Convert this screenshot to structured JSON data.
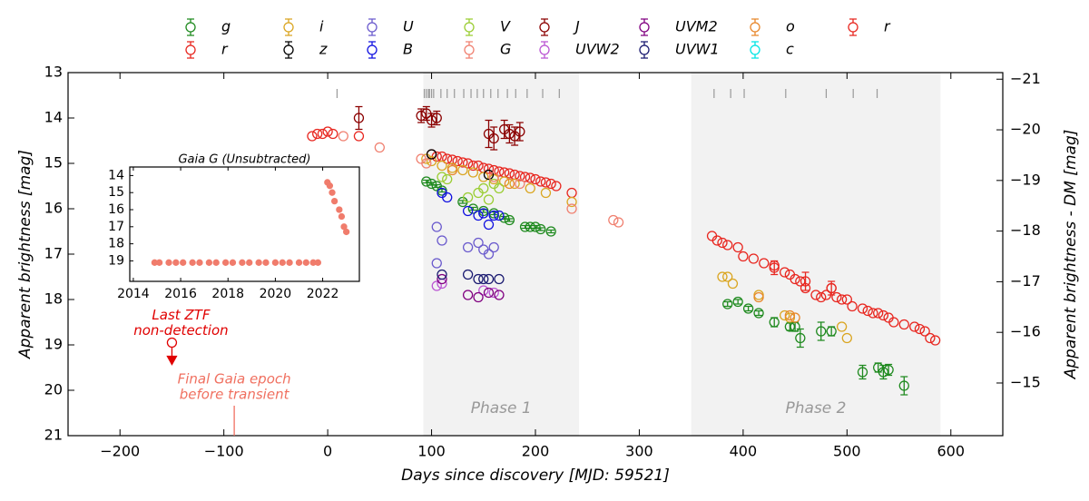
{
  "chart_data": [
    {
      "type": "scatter",
      "xlabel": "Days since discovery [MJD: 59521]",
      "ylabel": "Apparent brightness [mag]",
      "y2label": "Apparent brightness - DM [mag]",
      "xlim": [
        -250,
        650
      ],
      "ylim": [
        13,
        21
      ],
      "invert_y": true,
      "y2lim": [
        -21.13,
        -13.96
      ],
      "xticks": [
        {
          "value": -200,
          "label": "−200"
        },
        {
          "value": -100,
          "label": "−100"
        },
        0,
        100,
        200,
        300,
        400,
        500,
        600
      ],
      "yticks": [
        13,
        14,
        15,
        16,
        17,
        18,
        19,
        20,
        21
      ],
      "y2ticks": [
        {
          "value": -21,
          "label": "−21"
        },
        {
          "value": -20,
          "label": "−20"
        },
        {
          "value": -19,
          "label": "−19"
        },
        {
          "value": -18,
          "label": "−18"
        },
        {
          "value": -17,
          "label": "−17"
        },
        {
          "value": -16,
          "label": "−16"
        },
        {
          "value": -15,
          "label": "−15"
        }
      ],
      "legend": "top",
      "regions": [
        {
          "label": "Phase 1",
          "range": [
            92,
            242
          ],
          "color": "#f2f2f2"
        },
        {
          "label": "Phase 2",
          "range": [
            350,
            590
          ],
          "color": "#f2f2f2"
        }
      ],
      "epoch_ticks": [
        9,
        93,
        95,
        97,
        98,
        100,
        102,
        109,
        115,
        122,
        131,
        138,
        144,
        150,
        157,
        164,
        173,
        181,
        192,
        207,
        223,
        372,
        388,
        401,
        441,
        480,
        506,
        529
      ],
      "epoch_color": "#999999",
      "series": [
        {
          "name": "g",
          "color": "#1f8a1f",
          "x": [
            95,
            100,
            105,
            110,
            130,
            140,
            150,
            160,
            170,
            175,
            190,
            195,
            200,
            205,
            215,
            385,
            395,
            405,
            415,
            430,
            445,
            450,
            455,
            475,
            485,
            515,
            530,
            535,
            540,
            555
          ],
          "y": [
            15.4,
            15.45,
            15.5,
            15.6,
            15.85,
            16.0,
            16.05,
            16.1,
            16.2,
            16.25,
            16.4,
            16.4,
            16.4,
            16.45,
            16.5,
            18.1,
            18.05,
            18.2,
            18.3,
            18.5,
            18.6,
            18.6,
            18.85,
            18.7,
            18.7,
            19.6,
            19.5,
            19.6,
            19.55,
            19.9
          ],
          "err": [
            0.03,
            0.03,
            0.03,
            0.03,
            0.03,
            0.03,
            0.03,
            0.03,
            0.03,
            0.03,
            0.03,
            0.03,
            0.03,
            0.03,
            0.03,
            0.05,
            0.05,
            0.05,
            0.05,
            0.1,
            0.08,
            0.1,
            0.2,
            0.2,
            0.1,
            0.15,
            0.1,
            0.15,
            0.12,
            0.2
          ]
        },
        {
          "name": "r",
          "color": "#e8261f",
          "x": [
            -15,
            -10,
            -5,
            0,
            5,
            30,
            100,
            105,
            110,
            115,
            120,
            125,
            130,
            135,
            140,
            145,
            150,
            155,
            160,
            165,
            170,
            175,
            180,
            185,
            190,
            195,
            200,
            205,
            210,
            215,
            220,
            235,
            370,
            375,
            380,
            385,
            395,
            400,
            410,
            420,
            430,
            440,
            445,
            450,
            455,
            460,
            470,
            475,
            480,
            485,
            490,
            495,
            500,
            505,
            515,
            520,
            525,
            530,
            535,
            540,
            545,
            555,
            565,
            570,
            575,
            580,
            585
          ],
          "y": [
            14.4,
            14.35,
            14.35,
            14.3,
            14.35,
            14.4,
            14.8,
            14.85,
            14.85,
            14.9,
            14.92,
            14.95,
            14.98,
            15.0,
            15.05,
            15.05,
            15.1,
            15.12,
            15.15,
            15.18,
            15.2,
            15.22,
            15.25,
            15.28,
            15.3,
            15.32,
            15.35,
            15.4,
            15.42,
            15.45,
            15.5,
            15.65,
            16.6,
            16.7,
            16.75,
            16.8,
            16.85,
            17.05,
            17.1,
            17.2,
            17.25,
            17.4,
            17.45,
            17.55,
            17.6,
            17.75,
            17.9,
            17.95,
            17.9,
            17.75,
            17.95,
            18.0,
            18.0,
            18.15,
            18.2,
            18.25,
            18.3,
            18.3,
            18.35,
            18.4,
            18.5,
            18.55,
            18.6,
            18.65,
            18.7,
            18.85,
            18.9
          ]
        },
        {
          "name": "i",
          "color": "#daa520",
          "x": [
            95,
            100,
            110,
            120,
            130,
            140,
            150,
            160,
            170,
            180,
            195,
            210,
            235,
            380,
            385,
            390,
            415,
            440,
            445,
            495,
            500
          ],
          "y": [
            14.9,
            14.95,
            15.05,
            15.1,
            15.15,
            15.2,
            15.3,
            15.35,
            15.4,
            15.45,
            15.55,
            15.65,
            15.85,
            17.5,
            17.5,
            17.65,
            17.9,
            18.35,
            18.4,
            18.6,
            18.85
          ]
        },
        {
          "name": "z",
          "color": "#000000",
          "x": [
            100,
            155
          ],
          "y": [
            14.8,
            15.25
          ]
        },
        {
          "name": "U",
          "color": "#6a5acd",
          "x": [
            105,
            105,
            110,
            135,
            145,
            150,
            155,
            160
          ],
          "y": [
            16.4,
            17.2,
            16.7,
            16.85,
            16.75,
            16.9,
            17.0,
            16.85
          ]
        },
        {
          "name": "B",
          "color": "#1010e0",
          "x": [
            110,
            115,
            135,
            145,
            150,
            155,
            160,
            165
          ],
          "y": [
            15.65,
            15.75,
            16.05,
            16.15,
            16.1,
            16.35,
            16.15,
            16.15
          ]
        },
        {
          "name": "V",
          "color": "#9acd32",
          "x": [
            110,
            115,
            135,
            145,
            150,
            155,
            160,
            165
          ],
          "y": [
            15.3,
            15.35,
            15.75,
            15.65,
            15.55,
            15.8,
            15.45,
            15.55
          ]
        },
        {
          "name": "G",
          "color": "#f08070",
          "x": [
            15,
            50,
            90,
            95,
            160,
            185,
            235,
            275,
            280
          ],
          "y": [
            14.4,
            14.65,
            14.9,
            15.0,
            15.3,
            15.45,
            16.0,
            16.25,
            16.3
          ]
        },
        {
          "name": "J",
          "color": "#8b0000",
          "x": [
            30,
            90,
            95,
            100,
            105,
            155,
            160,
            170,
            175,
            180,
            185
          ],
          "y": [
            14.0,
            13.95,
            13.9,
            14.05,
            14.0,
            14.35,
            14.45,
            14.25,
            14.35,
            14.4,
            14.3
          ],
          "err": [
            0.25,
            0.15,
            0.15,
            0.15,
            0.15,
            0.3,
            0.25,
            0.2,
            0.2,
            0.2,
            0.2
          ]
        },
        {
          "name": "UVW2",
          "color": "#ba55d3",
          "x": [
            105,
            110,
            150,
            160
          ],
          "y": [
            17.7,
            17.65,
            17.8,
            17.85
          ]
        },
        {
          "name": "UVM2",
          "color": "#800080",
          "x": [
            110,
            135,
            145,
            155,
            165
          ],
          "y": [
            17.55,
            17.9,
            17.95,
            17.85,
            17.9
          ]
        },
        {
          "name": "UVW1",
          "color": "#191970",
          "x": [
            110,
            135,
            145,
            150,
            155,
            165
          ],
          "y": [
            17.45,
            17.45,
            17.55,
            17.55,
            17.55,
            17.55
          ]
        },
        {
          "name": "o",
          "color": "#e8862a",
          "x": [
            120,
            175,
            415,
            445,
            450
          ],
          "y": [
            15.15,
            15.45,
            17.95,
            18.35,
            18.4
          ]
        },
        {
          "name": "c",
          "color": "#00e5e5",
          "x": [],
          "y": []
        },
        {
          "name": "r",
          "color": "#e8261f",
          "x": [
            430,
            460,
            485
          ],
          "y": [
            17.3,
            17.6,
            17.75
          ],
          "err": [
            0.15,
            0.2,
            0.15
          ]
        }
      ],
      "upper_limits": [
        {
          "x": -150,
          "y": 18.95,
          "color": "#e00000",
          "label_lines": [
            "Last ZTF",
            "non-detection"
          ]
        }
      ],
      "annotations": [
        {
          "x": -90,
          "color": "#f07060",
          "label_lines": [
            "Final Gaia epoch",
            "before transient"
          ]
        }
      ]
    },
    {
      "type": "scatter",
      "title": "Gaia G (Unsubtracted)",
      "xlim": [
        2013.85,
        2023.55
      ],
      "ylim": [
        13.5,
        20.2
      ],
      "invert_y": true,
      "xticks": [
        2014,
        2016,
        2018,
        2020,
        2022
      ],
      "yticks": [
        14,
        15,
        16,
        17,
        18,
        19
      ],
      "series": [
        {
          "color": "#f07c6c",
          "x": [
            2014.9,
            2015.1,
            2015.5,
            2015.8,
            2016.1,
            2016.5,
            2016.8,
            2017.2,
            2017.5,
            2017.9,
            2018.2,
            2018.6,
            2018.9,
            2019.3,
            2019.6,
            2020.0,
            2020.3,
            2020.6,
            2021.0,
            2021.3,
            2021.6,
            2021.8,
            2022.2,
            2022.3,
            2022.4,
            2022.5,
            2022.7,
            2022.8,
            2022.9,
            2023.0
          ],
          "y": [
            19.1,
            19.1,
            19.1,
            19.1,
            19.1,
            19.1,
            19.1,
            19.1,
            19.1,
            19.1,
            19.1,
            19.1,
            19.1,
            19.1,
            19.1,
            19.1,
            19.1,
            19.1,
            19.1,
            19.1,
            19.1,
            19.1,
            14.4,
            14.6,
            15.0,
            15.5,
            16.0,
            16.4,
            17.0,
            17.3
          ]
        }
      ]
    }
  ]
}
